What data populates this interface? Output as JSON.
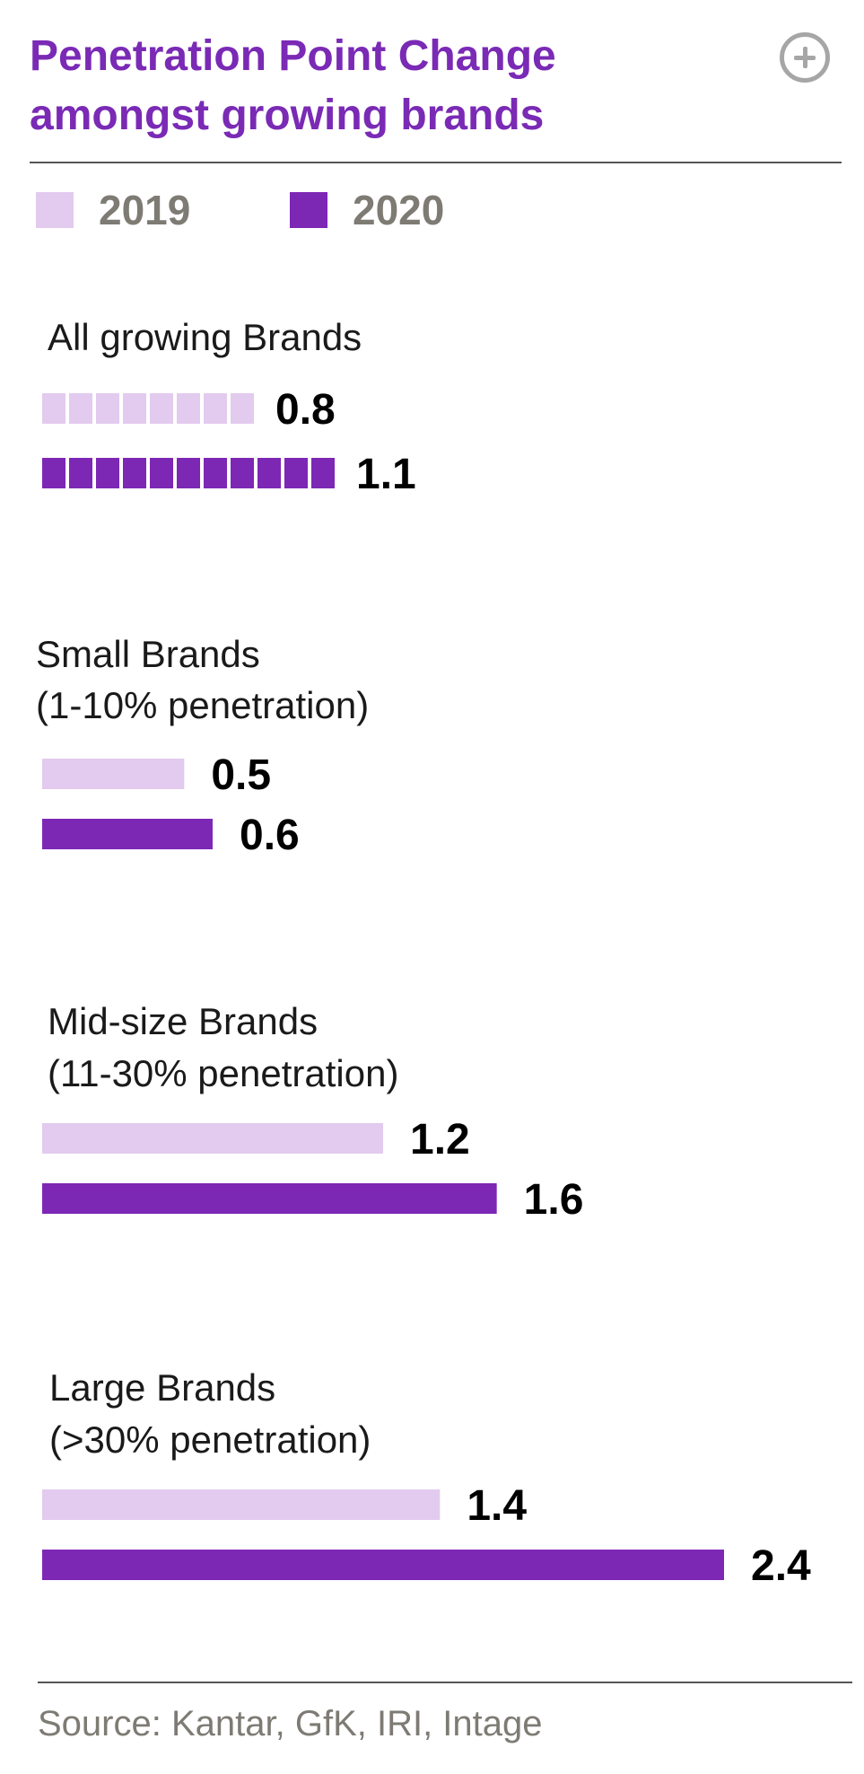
{
  "header": {
    "title_line1": "Penetration Point Change",
    "title_line2": "amongst growing brands"
  },
  "legend": [
    {
      "label": "2019",
      "color": "#e2cbee"
    },
    {
      "label": "2020",
      "color": "#7d27b5"
    }
  ],
  "footer": {
    "source": "Source: Kantar, GfK, IRI, Intage"
  },
  "chart_data": {
    "type": "bar",
    "orientation": "horizontal",
    "title": "Penetration Point Change amongst growing brands",
    "categories": [
      [
        "All growing Brands"
      ],
      [
        "Small Brands",
        "(1-10% penetration)"
      ],
      [
        "Mid-size Brands",
        "(11-30% penetration)"
      ],
      [
        "Large Brands",
        "(>30% penetration)"
      ]
    ],
    "series": [
      {
        "name": "2019",
        "color": "#e2cbee",
        "values": [
          0.8,
          0.5,
          1.2,
          1.4
        ]
      },
      {
        "name": "2020",
        "color": "#7d27b5",
        "values": [
          1.1,
          0.6,
          1.6,
          2.4
        ]
      }
    ],
    "value_labels": [
      [
        "0.8",
        "0.5",
        "1.2",
        "1.4"
      ],
      [
        "1.1",
        "0.6",
        "1.6",
        "2.4"
      ]
    ],
    "segmented_first_group": true,
    "xlim": [
      0,
      2.4
    ],
    "grid": false,
    "legend_position": "top-left"
  }
}
